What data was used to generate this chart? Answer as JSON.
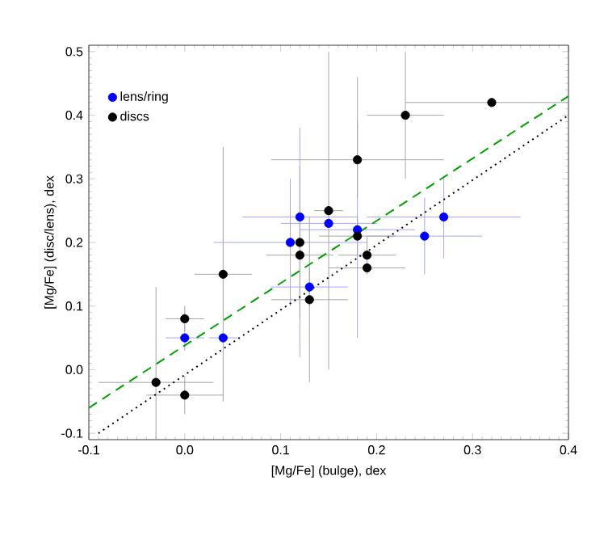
{
  "chart_data": {
    "type": "scatter",
    "xlabel": "[Mg/Fe] (bulge), dex",
    "ylabel": "[Mg/Fe] (disc/lens), dex",
    "xlim": [
      -0.1,
      0.4
    ],
    "ylim": [
      -0.11,
      0.51
    ],
    "xticks": [
      -0.1,
      {
        "value": 0,
        "label": "0.0"
      },
      0.1,
      0.2,
      0.3,
      0.4
    ],
    "yticks": [
      -0.1,
      {
        "value": 0,
        "label": "0.0"
      },
      0.1,
      0.2,
      0.3,
      0.4,
      0.5
    ],
    "legend": "top left",
    "grid": false,
    "series": [
      {
        "name": "lens/ring",
        "color": "#0000ff",
        "x": [
          0.12,
          0.15,
          0.18,
          0.27,
          0.11,
          0.25,
          0.13,
          0.0,
          0.04
        ],
        "values": [
          0.24,
          0.23,
          0.22,
          0.24,
          0.2,
          0.21,
          0.13,
          0.05,
          0.05
        ],
        "xerrors": [
          0.06,
          0.05,
          0.06,
          0.08,
          0.08,
          0.06,
          0.04,
          0.02,
          0.015
        ],
        "errors": [
          [
            0.02,
            0.38
          ],
          null,
          0.17,
          0.065,
          0.1,
          0.06,
          0.03,
          0.02,
          null
        ]
      },
      {
        "name": "discs",
        "color": "#000000",
        "x": [
          0.32,
          0.23,
          0.18,
          0.15,
          0.12,
          0.12,
          0.18,
          0.19,
          0.19,
          0.13,
          0.04,
          0.0,
          -0.03,
          0.0
        ],
        "values": [
          0.42,
          0.4,
          0.33,
          0.25,
          0.2,
          0.18,
          0.21,
          0.18,
          0.16,
          0.11,
          0.15,
          0.08,
          -0.02,
          -0.04
        ],
        "xerrors": [
          0.09,
          0.04,
          0.09,
          0.015,
          null,
          0.035,
          0.04,
          0.03,
          0.04,
          0.04,
          0.03,
          0.02,
          0.06,
          0.04
        ],
        "errors": [
          null,
          0.1,
          [
            0.27,
            0.46
          ],
          0.25,
          0.12,
          null,
          0.03,
          0.03,
          null,
          0.13,
          0.2,
          0.02,
          0.15,
          0.03
        ]
      },
      {
        "type": "line",
        "color": "#00a000",
        "line_style": "dashed",
        "x": [
          -0.1,
          0.4
        ],
        "values": [
          -0.06,
          0.43
        ]
      },
      {
        "type": "line",
        "color": "#000000",
        "line_style": "dotted",
        "x": [
          -0.09,
          0.4
        ],
        "values": [
          -0.1,
          0.4
        ]
      }
    ]
  }
}
